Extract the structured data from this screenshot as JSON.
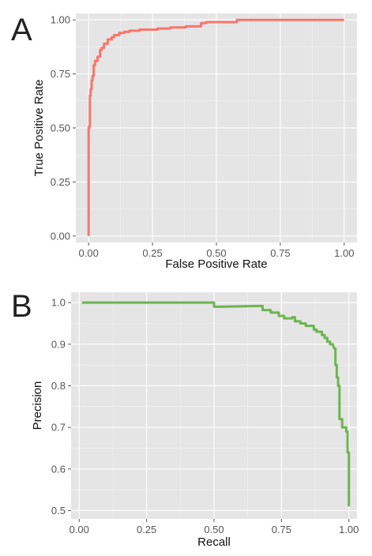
{
  "chart_data": [
    {
      "type": "line",
      "panel_label": "A",
      "xlabel": "False Positive Rate",
      "ylabel": "True Positive Rate",
      "xlim": [
        -0.05,
        1.05
      ],
      "ylim": [
        -0.03,
        1.03
      ],
      "xticks": [
        0,
        0.25,
        0.5,
        0.75,
        1
      ],
      "xtick_labels": [
        "0.00",
        "0.25",
        "0.50",
        "0.75",
        "1.00"
      ],
      "yticks": [
        0,
        0.25,
        0.5,
        0.75,
        1
      ],
      "ytick_labels": [
        "0.00",
        "0.25",
        "0.50",
        "0.75",
        "1.00"
      ],
      "grid": true,
      "legend": "none",
      "color": "#f8766d",
      "series": [
        {
          "x": [
            0.0,
            0.0,
            0.003,
            0.003,
            0.005,
            0.005,
            0.008,
            0.008,
            0.012,
            0.012,
            0.015,
            0.015,
            0.02,
            0.02,
            0.025,
            0.025,
            0.035,
            0.035,
            0.045,
            0.045,
            0.05,
            0.05,
            0.06,
            0.06,
            0.075,
            0.075,
            0.09,
            0.09,
            0.1,
            0.1,
            0.12,
            0.12,
            0.14,
            0.14,
            0.16,
            0.16,
            0.2,
            0.2,
            0.27,
            0.27,
            0.32,
            0.32,
            0.38,
            0.38,
            0.44,
            0.44,
            0.46,
            0.46,
            0.58,
            0.58,
            1.0
          ],
          "y": [
            0.0,
            0.5,
            0.5,
            0.51,
            0.51,
            0.65,
            0.65,
            0.68,
            0.68,
            0.72,
            0.72,
            0.74,
            0.74,
            0.79,
            0.79,
            0.81,
            0.81,
            0.83,
            0.83,
            0.86,
            0.86,
            0.87,
            0.87,
            0.89,
            0.89,
            0.91,
            0.91,
            0.92,
            0.92,
            0.93,
            0.93,
            0.94,
            0.94,
            0.945,
            0.945,
            0.95,
            0.95,
            0.955,
            0.955,
            0.96,
            0.96,
            0.965,
            0.965,
            0.97,
            0.97,
            0.985,
            0.985,
            0.99,
            0.99,
            1.0,
            1.0
          ]
        }
      ]
    },
    {
      "type": "line",
      "panel_label": "B",
      "xlabel": "Recall",
      "ylabel": "Precision",
      "xlim": [
        -0.03,
        1.03
      ],
      "ylim": [
        0.48,
        1.025
      ],
      "xticks": [
        0,
        0.25,
        0.5,
        0.75,
        1
      ],
      "xtick_labels": [
        "0.00",
        "0.25",
        "0.50",
        "0.75",
        "1.00"
      ],
      "yticks": [
        0.5,
        0.6,
        0.7,
        0.8,
        0.9,
        1.0
      ],
      "ytick_labels": [
        "0.5",
        "0.6",
        "0.7",
        "0.8",
        "0.9",
        "1.0"
      ],
      "grid": true,
      "legend": "none",
      "color": "#6db451",
      "series": [
        {
          "x": [
            0.01,
            0.5,
            0.5,
            0.52,
            0.67,
            0.68,
            0.68,
            0.71,
            0.71,
            0.74,
            0.74,
            0.76,
            0.76,
            0.79,
            0.79,
            0.8,
            0.8,
            0.82,
            0.82,
            0.84,
            0.84,
            0.87,
            0.87,
            0.88,
            0.88,
            0.9,
            0.9,
            0.91,
            0.91,
            0.92,
            0.92,
            0.93,
            0.93,
            0.94,
            0.945,
            0.95,
            0.95,
            0.955,
            0.955,
            0.96,
            0.96,
            0.965,
            0.965,
            0.975,
            0.975,
            0.99,
            0.99,
            0.995,
            0.995,
            1.0,
            1.0
          ],
          "y": [
            1.0,
            1.0,
            0.99,
            0.99,
            0.992,
            0.992,
            0.982,
            0.982,
            0.976,
            0.976,
            0.968,
            0.968,
            0.962,
            0.962,
            0.965,
            0.965,
            0.955,
            0.955,
            0.95,
            0.95,
            0.944,
            0.944,
            0.935,
            0.935,
            0.93,
            0.93,
            0.922,
            0.922,
            0.915,
            0.915,
            0.906,
            0.906,
            0.9,
            0.9,
            0.89,
            0.89,
            0.85,
            0.85,
            0.82,
            0.82,
            0.8,
            0.8,
            0.72,
            0.72,
            0.7,
            0.7,
            0.69,
            0.69,
            0.64,
            0.64,
            0.51
          ]
        }
      ]
    }
  ]
}
